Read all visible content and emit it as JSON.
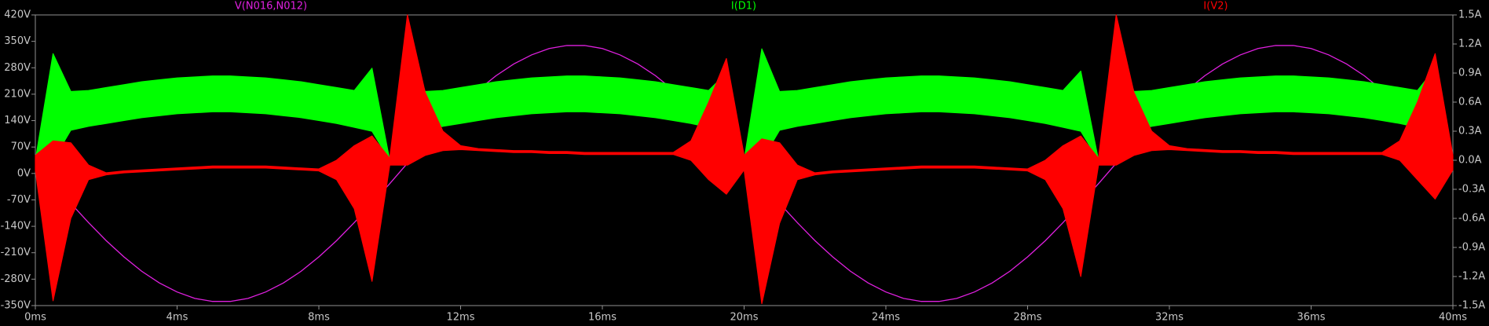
{
  "chart_data": {
    "type": "line",
    "x": [
      0,
      0.5,
      1,
      1.5,
      2,
      2.5,
      3,
      3.5,
      4,
      4.5,
      5,
      5.5,
      6,
      6.5,
      7,
      7.5,
      8,
      8.5,
      9,
      9.5,
      10,
      10.5,
      11,
      11.5,
      12,
      12.5,
      13,
      13.5,
      14,
      14.5,
      15,
      15.5,
      16,
      16.5,
      17,
      17.5,
      18,
      18.5,
      19,
      19.5,
      20,
      20.5,
      21,
      21.5,
      22,
      22.5,
      23,
      23.5,
      24,
      24.5,
      25,
      25.5,
      26,
      26.5,
      27,
      27.5,
      28,
      28.5,
      29,
      29.5,
      30,
      30.5,
      31,
      31.5,
      32,
      32.5,
      33,
      33.5,
      34,
      34.5,
      35,
      35.5,
      36,
      36.5,
      37,
      37.5,
      38,
      38.5,
      39,
      39.5,
      40
    ],
    "xlim": [
      0,
      40
    ],
    "xticks": [
      {
        "value": 0,
        "label": "0ms"
      },
      {
        "value": 4,
        "label": "4ms"
      },
      {
        "value": 8,
        "label": "8ms"
      },
      {
        "value": 12,
        "label": "12ms"
      },
      {
        "value": 16,
        "label": "16ms"
      },
      {
        "value": 20,
        "label": "20ms"
      },
      {
        "value": 24,
        "label": "24ms"
      },
      {
        "value": 28,
        "label": "28ms"
      },
      {
        "value": 32,
        "label": "32ms"
      },
      {
        "value": 36,
        "label": "36ms"
      },
      {
        "value": 40,
        "label": "40ms"
      }
    ],
    "ylim": [
      -350,
      420
    ],
    "yticks": [
      {
        "value": 420,
        "label": "420V"
      },
      {
        "value": 350,
        "label": "350V"
      },
      {
        "value": 280,
        "label": "280V"
      },
      {
        "value": 210,
        "label": "210V"
      },
      {
        "value": 140,
        "label": "140V"
      },
      {
        "value": 70,
        "label": "70V"
      },
      {
        "value": 0,
        "label": "0V"
      },
      {
        "value": -70,
        "label": "-70V"
      },
      {
        "value": -140,
        "label": "-140V"
      },
      {
        "value": -210,
        "label": "-210V"
      },
      {
        "value": -280,
        "label": "-280V"
      },
      {
        "value": -350,
        "label": "-350V"
      }
    ],
    "y2lim": [
      -1.5,
      1.5
    ],
    "y2ticks": [
      {
        "value": 1.5,
        "label": "1.5A"
      },
      {
        "value": 1.2,
        "label": "1.2A"
      },
      {
        "value": 0.9,
        "label": "0.9A"
      },
      {
        "value": 0.6,
        "label": "0.6A"
      },
      {
        "value": 0.3,
        "label": "0.3A"
      },
      {
        "value": 0,
        "label": "0.0A"
      },
      {
        "value": -0.3,
        "label": "-0.3A"
      },
      {
        "value": -0.6,
        "label": "-0.6A"
      },
      {
        "value": -0.9,
        "label": "-0.9A"
      },
      {
        "value": -1.2,
        "label": "-1.2A"
      },
      {
        "value": -1.5,
        "label": "-1.5A"
      }
    ],
    "grid": false,
    "series": [
      {
        "name": "V(N016,N012)",
        "color": "#e020e0",
        "axis": "y",
        "values": [
          27,
          -27,
          -79,
          -130,
          -178,
          -221,
          -259,
          -290,
          -314,
          -331,
          -339,
          -339,
          -331,
          -314,
          -290,
          -259,
          -221,
          -178,
          -130,
          -79,
          -27,
          27,
          79,
          130,
          178,
          221,
          259,
          290,
          314,
          331,
          339,
          339,
          331,
          314,
          290,
          259,
          221,
          178,
          130,
          79,
          27,
          -27,
          -79,
          -130,
          -178,
          -221,
          -259,
          -290,
          -314,
          -331,
          -339,
          -339,
          -331,
          -314,
          -290,
          -259,
          -221,
          -178,
          -130,
          -79,
          -27,
          27,
          79,
          130,
          178,
          221,
          259,
          290,
          314,
          331,
          339,
          339,
          331,
          314,
          290,
          259,
          221,
          178,
          130,
          79,
          27
        ]
      },
      {
        "name": "I(D1)",
        "color": "#00ff00",
        "axis": "y2",
        "min": [
          0,
          0,
          0.31,
          0.35,
          0.38,
          0.41,
          0.44,
          0.46,
          0.48,
          0.49,
          0.5,
          0.5,
          0.49,
          0.48,
          0.46,
          0.44,
          0.41,
          0.38,
          0.34,
          0.3,
          0,
          0,
          0.31,
          0.35,
          0.38,
          0.41,
          0.44,
          0.46,
          0.48,
          0.49,
          0.5,
          0.5,
          0.49,
          0.48,
          0.46,
          0.44,
          0.41,
          0.38,
          0.34,
          0.3,
          0,
          0,
          0.31,
          0.35,
          0.38,
          0.41,
          0.44,
          0.46,
          0.48,
          0.49,
          0.5,
          0.5,
          0.49,
          0.48,
          0.46,
          0.44,
          0.41,
          0.38,
          0.34,
          0.3,
          0,
          0,
          0.31,
          0.35,
          0.38,
          0.41,
          0.44,
          0.46,
          0.48,
          0.49,
          0.5,
          0.5,
          0.49,
          0.48,
          0.46,
          0.44,
          0.41,
          0.38,
          0.34,
          0.3,
          0
        ],
        "max": [
          0,
          1.1,
          0.71,
          0.72,
          0.75,
          0.78,
          0.81,
          0.83,
          0.85,
          0.86,
          0.87,
          0.87,
          0.86,
          0.85,
          0.83,
          0.81,
          0.78,
          0.75,
          0.72,
          0.95,
          0,
          1.25,
          0.71,
          0.72,
          0.75,
          0.78,
          0.81,
          0.83,
          0.85,
          0.86,
          0.87,
          0.87,
          0.86,
          0.85,
          0.83,
          0.81,
          0.78,
          0.75,
          0.72,
          0.9,
          0,
          1.15,
          0.71,
          0.72,
          0.75,
          0.78,
          0.81,
          0.83,
          0.85,
          0.86,
          0.87,
          0.87,
          0.86,
          0.85,
          0.83,
          0.81,
          0.78,
          0.75,
          0.72,
          0.92,
          0,
          1.25,
          0.71,
          0.72,
          0.75,
          0.78,
          0.81,
          0.83,
          0.85,
          0.86,
          0.87,
          0.87,
          0.86,
          0.85,
          0.83,
          0.81,
          0.78,
          0.75,
          0.72,
          0.95,
          0
        ]
      },
      {
        "name": "I(V2)",
        "color": "#ff0000",
        "axis": "y2",
        "min": [
          -0.1,
          -1.45,
          -0.6,
          -0.2,
          -0.15,
          -0.13,
          -0.12,
          -0.11,
          -0.1,
          -0.09,
          -0.08,
          -0.08,
          -0.08,
          -0.08,
          -0.09,
          -0.1,
          -0.11,
          -0.2,
          -0.5,
          -1.25,
          -0.05,
          -0.05,
          0.05,
          0.1,
          0.11,
          0.1,
          0.09,
          0.08,
          0.08,
          0.07,
          0.07,
          0.06,
          0.06,
          0.06,
          0.06,
          0.06,
          0.06,
          0,
          -0.2,
          -0.35,
          -0.1,
          -1.48,
          -0.65,
          -0.2,
          -0.15,
          -0.13,
          -0.12,
          -0.11,
          -0.1,
          -0.09,
          -0.08,
          -0.08,
          -0.08,
          -0.08,
          -0.09,
          -0.1,
          -0.11,
          -0.2,
          -0.5,
          -1.2,
          -0.05,
          -0.05,
          0.05,
          0.1,
          0.11,
          0.1,
          0.09,
          0.08,
          0.08,
          0.07,
          0.07,
          0.06,
          0.06,
          0.06,
          0.06,
          0.06,
          0.06,
          0,
          -0.2,
          -0.4,
          -0.1
        ],
        "max": [
          0.05,
          0.2,
          0.18,
          -0.05,
          -0.13,
          -0.11,
          -0.1,
          -0.09,
          -0.08,
          -0.07,
          -0.06,
          -0.06,
          -0.06,
          -0.06,
          -0.07,
          -0.08,
          -0.09,
          0,
          0.15,
          0.25,
          0.02,
          1.5,
          0.7,
          0.3,
          0.15,
          0.12,
          0.11,
          0.1,
          0.1,
          0.09,
          0.09,
          0.08,
          0.08,
          0.08,
          0.08,
          0.08,
          0.08,
          0.2,
          0.6,
          1.05,
          0.05,
          0.22,
          0.18,
          -0.05,
          -0.13,
          -0.11,
          -0.1,
          -0.09,
          -0.08,
          -0.07,
          -0.06,
          -0.06,
          -0.06,
          -0.06,
          -0.07,
          -0.08,
          -0.09,
          0,
          0.15,
          0.25,
          0.02,
          1.5,
          0.7,
          0.3,
          0.15,
          0.12,
          0.11,
          0.1,
          0.1,
          0.09,
          0.09,
          0.08,
          0.08,
          0.08,
          0.08,
          0.08,
          0.08,
          0.2,
          0.6,
          1.1,
          0.05
        ]
      }
    ]
  }
}
